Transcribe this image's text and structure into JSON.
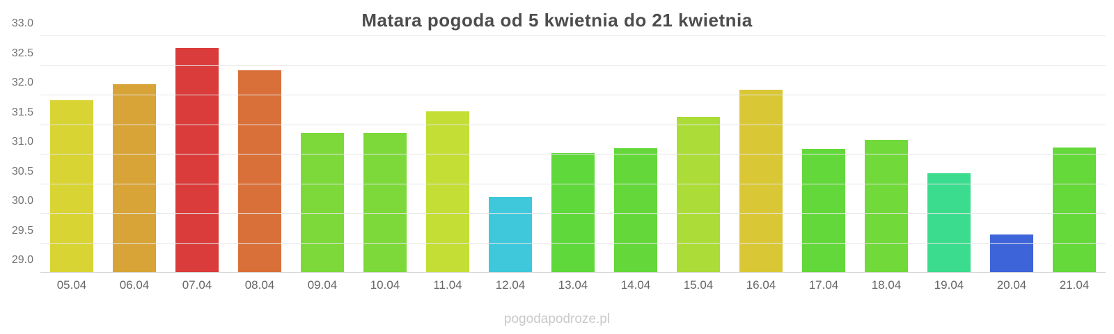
{
  "title": "Matara pogoda od 5 kwietnia do 21 kwietnia",
  "watermark": "pogodapodroze.pl",
  "chart_data": {
    "type": "bar",
    "title": "Matara pogoda od 5 kwietnia do 21 kwietnia",
    "xlabel": "",
    "ylabel": "",
    "categories": [
      "05.04",
      "06.04",
      "07.04",
      "08.04",
      "09.04",
      "10.04",
      "11.04",
      "12.04",
      "13.04",
      "14.04",
      "15.04",
      "16.04",
      "17.04",
      "18.04",
      "19.04",
      "20.04",
      "21.04"
    ],
    "values": [
      31.92,
      32.19,
      32.8,
      32.42,
      31.37,
      31.36,
      31.73,
      30.28,
      31.02,
      31.11,
      31.63,
      32.1,
      31.09,
      31.25,
      30.68,
      29.65,
      31.12
    ],
    "bar_colors": [
      "#d8d434",
      "#d8a438",
      "#d93c3a",
      "#d9703a",
      "#7dd939",
      "#7cd939",
      "#c4de35",
      "#3fc8dc",
      "#5ed83a",
      "#64d83a",
      "#abdc37",
      "#d9c736",
      "#63d83a",
      "#71d939",
      "#3cdc8e",
      "#3e64d9",
      "#65d83a"
    ],
    "ylim": [
      29.0,
      33.0
    ],
    "yticks": [
      29.0,
      29.5,
      30.0,
      30.5,
      31.0,
      31.5,
      32.0,
      32.5,
      33.0
    ],
    "ytick_format_decimals": 1,
    "grid": true,
    "legend_position": "none"
  }
}
